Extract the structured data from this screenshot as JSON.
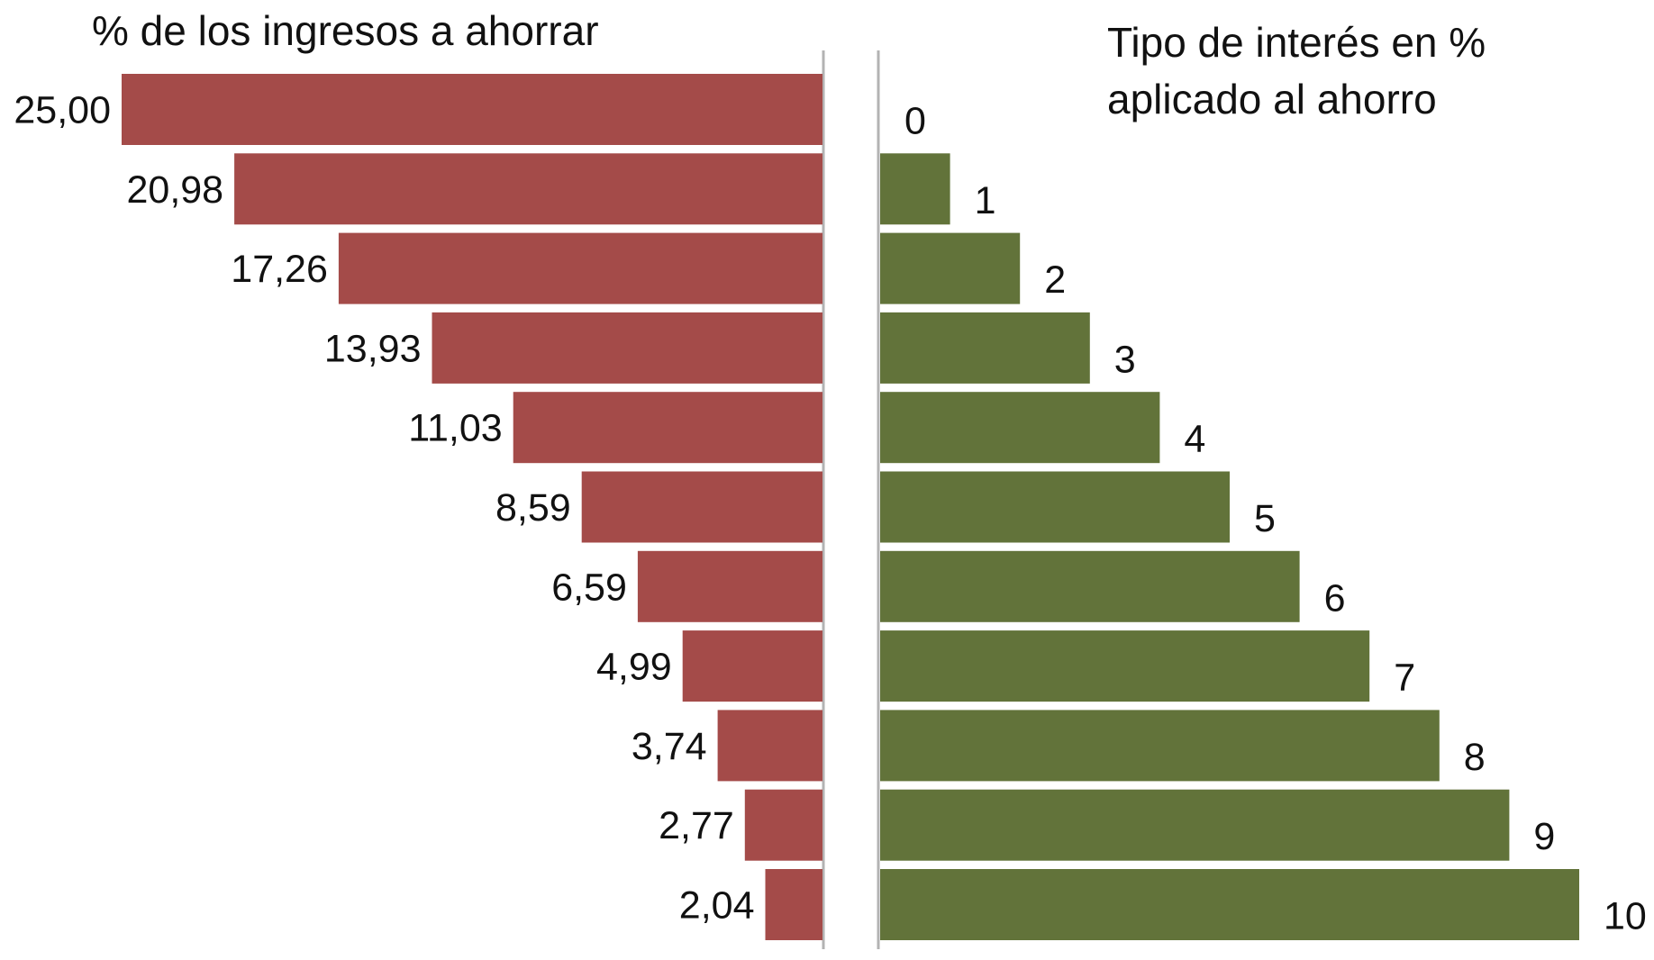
{
  "chart_data": {
    "type": "bar",
    "layout": "back-to-back horizontal bars",
    "left": {
      "title": "% de los ingresos a ahorrar",
      "labels": [
        "25,00",
        "20,98",
        "17,26",
        "13,93",
        "11,03",
        "8,59",
        "6,59",
        "4,99",
        "3,74",
        "2,77",
        "2,04"
      ],
      "values": [
        25.0,
        20.98,
        17.26,
        13.93,
        11.03,
        8.59,
        6.59,
        4.99,
        3.74,
        2.77,
        2.04
      ],
      "color": "#a44b49"
    },
    "right": {
      "title_lines": [
        "Tipo de interés en %",
        "aplicado al ahorro"
      ],
      "labels": [
        "0",
        "1",
        "2",
        "3",
        "4",
        "5",
        "6",
        "7",
        "8",
        "9",
        "10"
      ],
      "values": [
        0,
        1,
        2,
        3,
        4,
        5,
        6,
        7,
        8,
        9,
        10
      ],
      "color": "#62733a"
    },
    "axis_line_color": "#b3b3b3"
  }
}
